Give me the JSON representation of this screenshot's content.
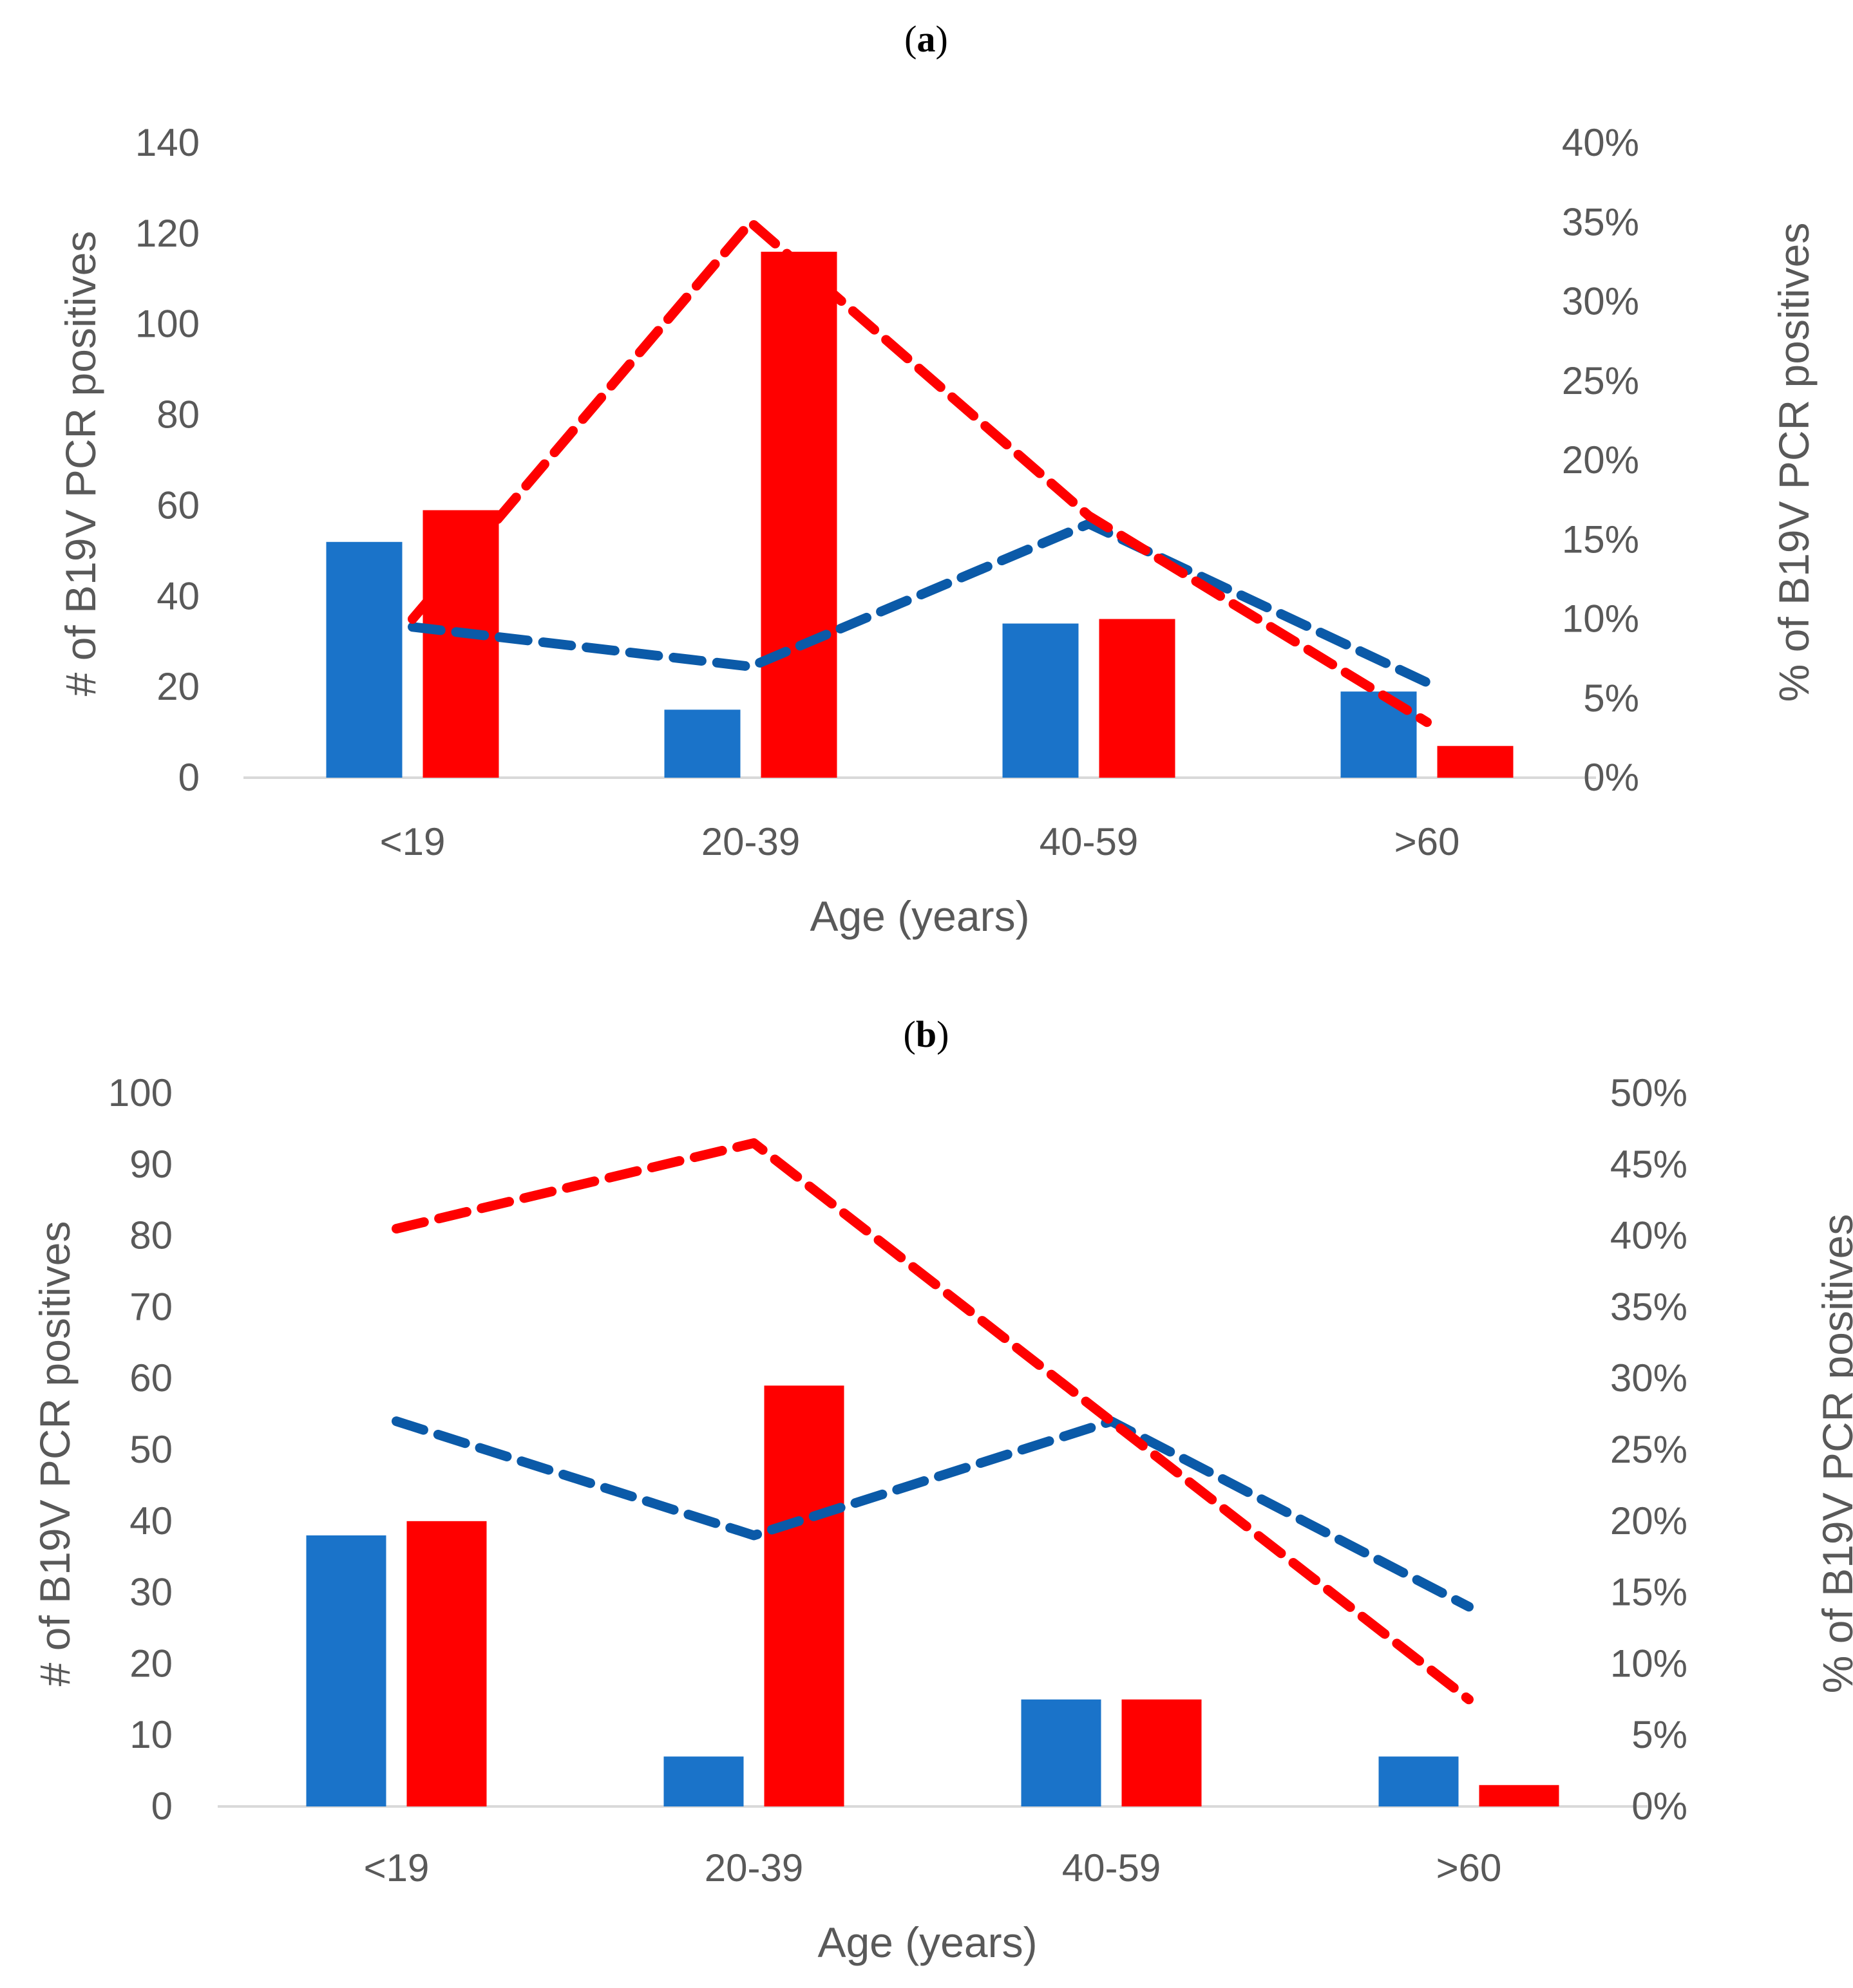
{
  "colors": {
    "blue": "#1a73c9",
    "red": "#ff0000",
    "blue_line": "#0b5aa8",
    "text": "#595959",
    "axis": "#d9d9d9"
  },
  "chart_data": [
    {
      "type": "bar+line",
      "panel": "a",
      "categories": [
        "<19",
        "20-39",
        "40-59",
        ">60"
      ],
      "xlabel": "Age (years)",
      "ylabel": "# of B19V  PCR positives",
      "y2label": "% of B19V PCR positives",
      "ylim": [
        0,
        140
      ],
      "yticks": [
        0,
        20,
        40,
        60,
        80,
        100,
        120,
        140
      ],
      "y2lim": [
        0,
        40
      ],
      "y2ticks": [
        "0%",
        "5%",
        "10%",
        "15%",
        "20%",
        "25%",
        "30%",
        "35%",
        "40%"
      ],
      "bars": [
        {
          "name": "blue",
          "color": "#1a73c9",
          "values": [
            52,
            15,
            34,
            19
          ]
        },
        {
          "name": "red",
          "color": "#ff0000",
          "values": [
            59,
            116,
            35,
            7
          ]
        }
      ],
      "lines": [
        {
          "name": "blue dashed",
          "color": "#0b5aa8",
          "values": [
            9.5,
            7.0,
            16.0,
            6.0
          ]
        },
        {
          "name": "red dashed",
          "color": "#ff0000",
          "values": [
            10.0,
            35.0,
            16.5,
            3.5
          ]
        }
      ]
    },
    {
      "type": "bar+line",
      "panel": "b",
      "categories": [
        "<19",
        "20-39",
        "40-59",
        ">60"
      ],
      "xlabel": "Age (years)",
      "ylabel": "# of B19V  PCR positives",
      "y2label": "% of B19V PCR positives",
      "ylim": [
        0,
        100
      ],
      "yticks": [
        0,
        10,
        20,
        30,
        40,
        50,
        60,
        70,
        80,
        90,
        100
      ],
      "y2lim": [
        0,
        50
      ],
      "y2ticks": [
        "0%",
        "5%",
        "10%",
        "15%",
        "20%",
        "25%",
        "30%",
        "35%",
        "40%",
        "45%",
        "50%"
      ],
      "bars": [
        {
          "name": "blue",
          "color": "#1a73c9",
          "values": [
            38,
            7,
            15,
            7
          ]
        },
        {
          "name": "red",
          "color": "#ff0000",
          "values": [
            40,
            59,
            15,
            3
          ]
        }
      ],
      "lines": [
        {
          "name": "blue dashed",
          "color": "#0b5aa8",
          "values": [
            27.0,
            19.0,
            27.0,
            14.0
          ]
        },
        {
          "name": "red dashed",
          "color": "#ff0000",
          "values": [
            40.5,
            46.5,
            27.0,
            7.5
          ]
        }
      ]
    }
  ]
}
